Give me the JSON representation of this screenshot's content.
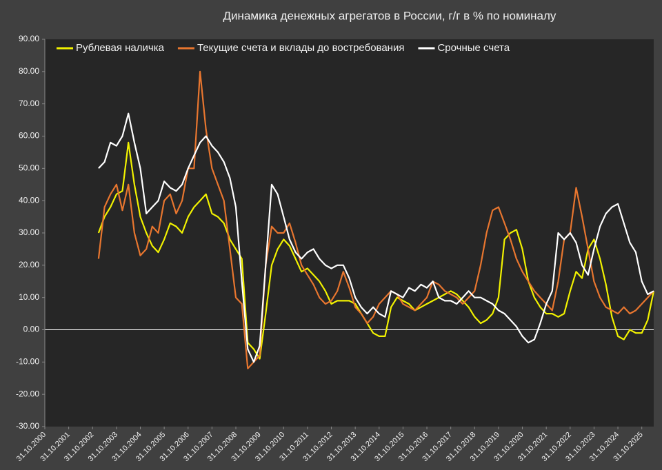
{
  "chart_data": {
    "type": "line",
    "title": "Динамика денежных агрегатов  в России, г/г в % по номиналу",
    "categories": [
      "31.10.2000",
      null,
      null,
      null,
      "31.10.2001",
      null,
      null,
      null,
      "31.10.2002",
      null,
      null,
      null,
      "31.10.2003",
      null,
      null,
      null,
      "31.10.2004",
      null,
      null,
      null,
      "31.10.2005",
      null,
      null,
      null,
      "31.10.2006",
      null,
      null,
      null,
      "31.10.2007",
      null,
      null,
      null,
      "31.10.2008",
      null,
      null,
      null,
      "31.10.2009",
      null,
      null,
      null,
      "31.10.2010",
      null,
      null,
      null,
      "31.10.2011",
      null,
      null,
      null,
      "31.10.2012",
      null,
      null,
      null,
      "31.10.2013",
      null,
      null,
      null,
      "31.10.2014",
      null,
      null,
      null,
      "31.10.2015",
      null,
      null,
      null,
      "31.10.2016",
      null,
      null,
      null,
      "31.10.2017",
      null,
      null,
      null,
      "31.10.2018",
      null,
      null,
      null,
      "31.10.2019",
      null,
      null,
      null,
      "31.10.2020",
      null,
      null,
      null,
      "31.10.2021",
      null,
      null,
      null,
      "31.10.2022",
      null,
      null,
      null,
      "31.10.2023",
      null,
      null,
      null,
      "31.10.2024",
      null,
      null,
      null,
      "31.10.2025",
      null,
      null
    ],
    "series": [
      {
        "name": "Рублевая наличка",
        "color": "#f2f200",
        "values": [
          null,
          null,
          null,
          null,
          null,
          null,
          null,
          null,
          null,
          30,
          35,
          38,
          42,
          43,
          58,
          45,
          35,
          30,
          26,
          24,
          28,
          33,
          32,
          30,
          35,
          38,
          40,
          42,
          36,
          35,
          33,
          28,
          25,
          22,
          -4,
          -6,
          -9,
          5,
          20,
          25,
          28,
          26,
          22,
          18,
          19,
          17,
          15,
          12,
          8,
          9,
          9,
          9,
          8,
          5,
          2,
          -1,
          -2,
          -2,
          7,
          10,
          9,
          8,
          6,
          7,
          8,
          9,
          10,
          11,
          12,
          11,
          9,
          7,
          4,
          2,
          3,
          5,
          10,
          28,
          30,
          31,
          25,
          15,
          10,
          7,
          5,
          5,
          4,
          5,
          12,
          18,
          16,
          25,
          28,
          22,
          14,
          4,
          -2,
          -3,
          0,
          -1,
          -1,
          3,
          12
        ]
      },
      {
        "name": "Текущие счета и вклады до востребования",
        "color": "#e8762f",
        "values": [
          null,
          null,
          null,
          null,
          null,
          null,
          null,
          null,
          null,
          22,
          38,
          42,
          45,
          37,
          45,
          30,
          23,
          25,
          32,
          30,
          40,
          42,
          36,
          40,
          50,
          50,
          80,
          62,
          50,
          45,
          40,
          25,
          10,
          8,
          -12,
          -10,
          -8,
          20,
          32,
          30,
          30,
          33,
          27,
          20,
          17,
          14,
          10,
          8,
          9,
          12,
          18,
          13,
          7,
          5,
          2,
          4,
          8,
          10,
          12,
          11,
          8,
          7,
          6,
          8,
          10,
          15,
          14,
          12,
          11,
          10,
          8,
          10,
          12,
          20,
          30,
          37,
          38,
          33,
          28,
          22,
          18,
          15,
          12,
          10,
          8,
          6,
          15,
          28,
          30,
          44,
          35,
          25,
          15,
          10,
          7,
          6,
          5,
          7,
          5,
          6,
          8,
          10,
          12
        ]
      },
      {
        "name": "Срочные счета",
        "color": "#ffffff",
        "values": [
          null,
          null,
          null,
          null,
          null,
          null,
          null,
          null,
          null,
          50,
          52,
          58,
          57,
          60,
          67,
          58,
          50,
          36,
          38,
          40,
          46,
          44,
          43,
          45,
          50,
          54,
          58,
          60,
          57,
          55,
          52,
          47,
          38,
          15,
          -6,
          -10,
          -5,
          20,
          45,
          42,
          35,
          28,
          24,
          22,
          24,
          25,
          22,
          20,
          19,
          20,
          20,
          16,
          10,
          7,
          5,
          7,
          5,
          4,
          12,
          11,
          10,
          13,
          12,
          14,
          13,
          15,
          10,
          9,
          9,
          8,
          10,
          12,
          10,
          10,
          9,
          8,
          6,
          5,
          3,
          1,
          -2,
          -4,
          -3,
          2,
          8,
          12,
          30,
          28,
          30,
          27,
          20,
          17,
          25,
          32,
          36,
          38,
          39,
          33,
          27,
          24,
          15,
          11,
          12
        ]
      }
    ],
    "ylim": [
      -30,
      90
    ],
    "yticks": [
      {
        "value": -30,
        "label": "-30.00"
      },
      {
        "value": -20,
        "label": "-20.00"
      },
      {
        "value": -10,
        "label": "-10.00"
      },
      {
        "value": 0,
        "label": "0.00"
      },
      {
        "value": 10,
        "label": "10.00"
      },
      {
        "value": 20,
        "label": "20.00"
      },
      {
        "value": 30,
        "label": "30.00"
      },
      {
        "value": 40,
        "label": "40.00"
      },
      {
        "value": 50,
        "label": "50.00"
      },
      {
        "value": 60,
        "label": "60.00"
      },
      {
        "value": 70,
        "label": "70.00"
      },
      {
        "value": 80,
        "label": "80.00"
      },
      {
        "value": 90,
        "label": "90.00"
      }
    ],
    "grid": false
  }
}
